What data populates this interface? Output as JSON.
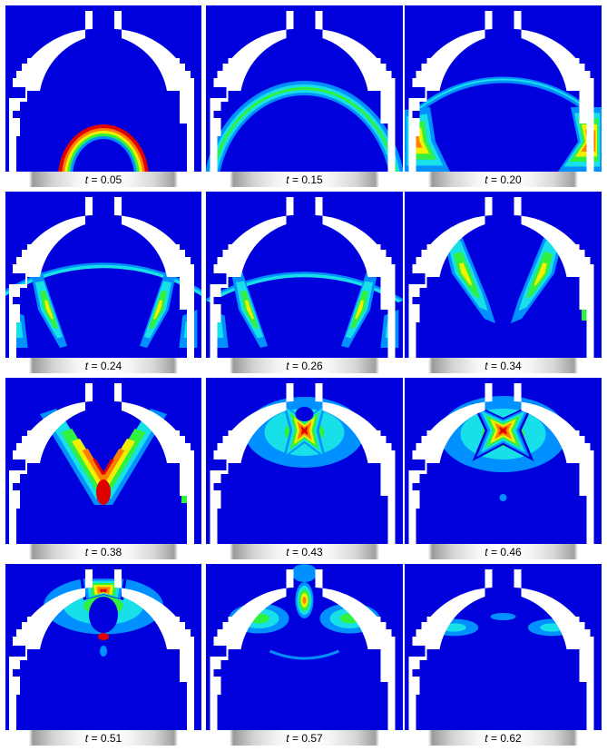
{
  "colors": {
    "background": "#0000dd",
    "geometry": "#ffffff",
    "colormap": [
      "#0000dd",
      "#0090ff",
      "#18e0e8",
      "#30f040",
      "#f0f000",
      "#ff8000",
      "#e00000"
    ]
  },
  "variable": "t",
  "panels": [
    {
      "time_label": "0.05"
    },
    {
      "time_label": "0.15"
    },
    {
      "time_label": "0.20"
    },
    {
      "time_label": "0.24"
    },
    {
      "time_label": "0.26"
    },
    {
      "time_label": "0.34"
    },
    {
      "time_label": "0.38"
    },
    {
      "time_label": "0.43"
    },
    {
      "time_label": "0.46"
    },
    {
      "time_label": "0.51"
    },
    {
      "time_label": "0.57"
    },
    {
      "time_label": "0.62"
    }
  ]
}
